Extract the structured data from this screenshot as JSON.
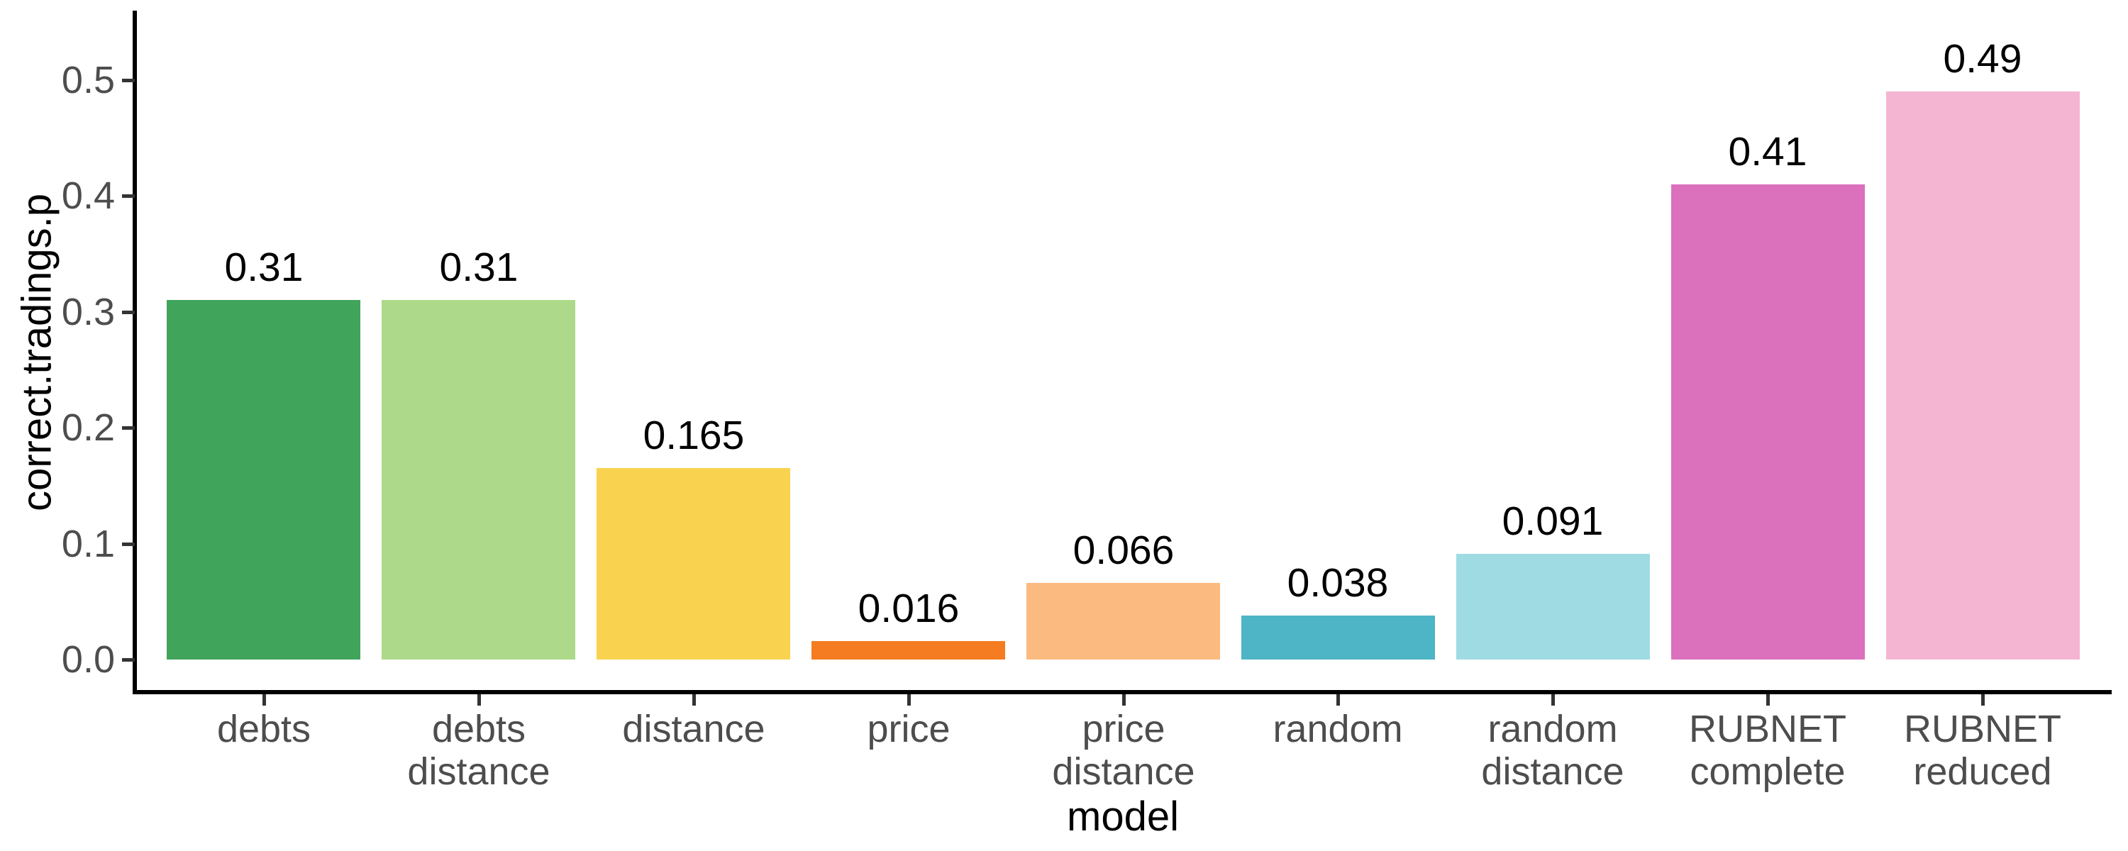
{
  "chart_data": {
    "type": "bar",
    "title": "",
    "xlabel": "model",
    "ylabel": "correct.tradings.p",
    "categories": [
      "debts",
      "debts\ndistance",
      "distance",
      "price",
      "price\ndistance",
      "random",
      "random\ndistance",
      "RUBNET\ncomplete",
      "RUBNET\nreduced"
    ],
    "values": [
      0.31,
      0.31,
      0.165,
      0.016,
      0.066,
      0.038,
      0.091,
      0.41,
      0.49
    ],
    "value_labels": [
      "0.31",
      "0.31",
      "0.165",
      "0.016",
      "0.066",
      "0.038",
      "0.091",
      "0.41",
      "0.49"
    ],
    "bar_colors": [
      "#41A45B",
      "#ADD98A",
      "#F9D34F",
      "#F57C20",
      "#FBBA7F",
      "#4DB5C6",
      "#9FDBE2",
      "#DB70BD",
      "#F4B5D3"
    ],
    "yticks": [
      "0.0",
      "0.1",
      "0.2",
      "0.3",
      "0.4",
      "0.5"
    ],
    "ylim": [
      0,
      0.54
    ],
    "grid": false,
    "legend": null,
    "background_color": "#FFFFFF",
    "axis_text_color": "#4D4D4D",
    "axis_title_color": "#000000",
    "axis_line_color": "#000000"
  }
}
